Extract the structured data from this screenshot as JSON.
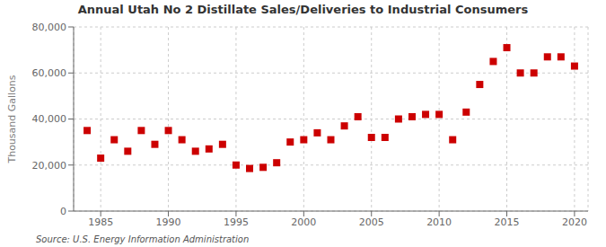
{
  "chart_data": {
    "type": "scatter",
    "title": "Annual Utah No 2 Distillate Sales/Deliveries to Industrial Consumers",
    "ylabel": "Thousand Gallons",
    "annotations": [
      "Source: U.S. Energy Information Administration"
    ],
    "x": [
      1984,
      1985,
      1986,
      1987,
      1988,
      1989,
      1990,
      1991,
      1992,
      1993,
      1994,
      1995,
      1996,
      1997,
      1998,
      1999,
      2000,
      2001,
      2002,
      2003,
      2004,
      2005,
      2006,
      2007,
      2008,
      2009,
      2010,
      2011,
      2012,
      2013,
      2014,
      2015,
      2016,
      2017,
      2018,
      2019,
      2020
    ],
    "values": [
      35000,
      23000,
      31000,
      26000,
      35000,
      29000,
      35000,
      31000,
      26000,
      27000,
      29000,
      20000,
      18500,
      19000,
      21000,
      30000,
      31000,
      34000,
      31000,
      37000,
      41000,
      32000,
      32000,
      40000,
      41000,
      42000,
      42000,
      31000,
      43000,
      55000,
      65000,
      71000,
      60000,
      60000,
      67000,
      67000,
      63000
    ],
    "color": "#cc0000",
    "marker": "square",
    "xlim": [
      1983,
      2021
    ],
    "ylim": [
      0,
      80000
    ],
    "xticks": [
      1985,
      1990,
      1995,
      2000,
      2005,
      2010,
      2015,
      2020
    ],
    "yticks": [
      0,
      {
        "value": 20000,
        "label": "20,000"
      },
      {
        "value": 40000,
        "label": "40,000"
      },
      {
        "value": 60000,
        "label": "60,000"
      },
      {
        "value": 80000,
        "label": "80,000"
      }
    ],
    "grid": true
  }
}
